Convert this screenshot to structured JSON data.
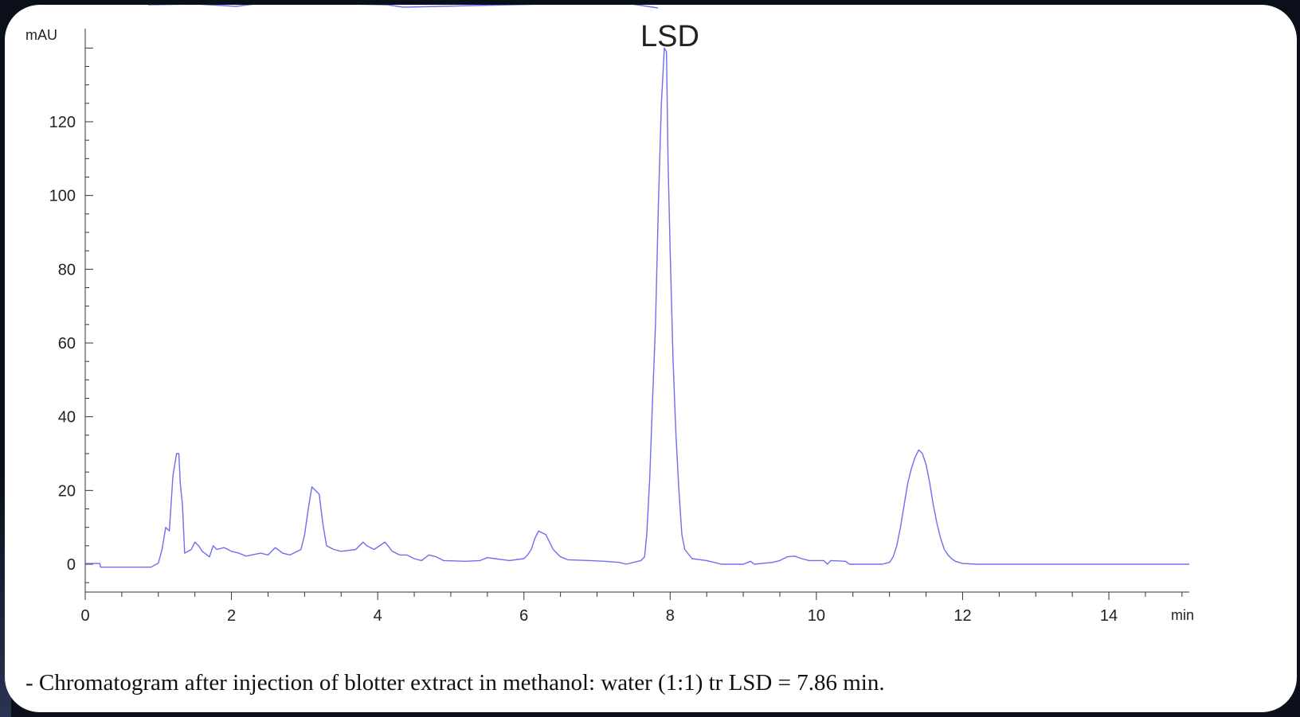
{
  "chart_data": {
    "type": "line",
    "title": "LSD",
    "ylabel": "mAU",
    "xlabel": "min",
    "xlim": [
      0,
      15.1
    ],
    "ylim": [
      -7,
      145
    ],
    "x_ticks": [
      "0",
      "2",
      "4",
      "6",
      "8",
      "10",
      "12",
      "14"
    ],
    "y_ticks": [
      "0",
      "20",
      "40",
      "60",
      "80",
      "100",
      "120"
    ],
    "series": [
      {
        "color": "#6e6ef0",
        "points": [
          [
            0.0,
            0.2
          ],
          [
            0.2,
            0.2
          ],
          [
            0.21,
            -0.8
          ],
          [
            0.9,
            -0.8
          ],
          [
            1.0,
            0.3
          ],
          [
            1.05,
            4
          ],
          [
            1.1,
            10
          ],
          [
            1.15,
            9
          ],
          [
            1.2,
            24
          ],
          [
            1.25,
            30
          ],
          [
            1.28,
            30
          ],
          [
            1.3,
            22
          ],
          [
            1.33,
            16
          ],
          [
            1.36,
            3
          ],
          [
            1.45,
            4
          ],
          [
            1.5,
            6
          ],
          [
            1.55,
            5
          ],
          [
            1.6,
            3.5
          ],
          [
            1.7,
            2
          ],
          [
            1.75,
            5
          ],
          [
            1.8,
            4
          ],
          [
            1.9,
            4.5
          ],
          [
            2.0,
            3.5
          ],
          [
            2.1,
            3
          ],
          [
            2.2,
            2.2
          ],
          [
            2.4,
            3
          ],
          [
            2.5,
            2.5
          ],
          [
            2.6,
            4.5
          ],
          [
            2.7,
            3
          ],
          [
            2.8,
            2.5
          ],
          [
            2.95,
            4
          ],
          [
            3.0,
            8
          ],
          [
            3.05,
            15
          ],
          [
            3.1,
            21
          ],
          [
            3.2,
            19
          ],
          [
            3.25,
            11
          ],
          [
            3.3,
            5
          ],
          [
            3.4,
            4
          ],
          [
            3.5,
            3.5
          ],
          [
            3.7,
            4
          ],
          [
            3.8,
            6
          ],
          [
            3.85,
            5
          ],
          [
            3.95,
            4
          ],
          [
            4.1,
            6
          ],
          [
            4.2,
            3.5
          ],
          [
            4.3,
            2.5
          ],
          [
            4.4,
            2.5
          ],
          [
            4.5,
            1.5
          ],
          [
            4.6,
            1
          ],
          [
            4.7,
            2.5
          ],
          [
            4.8,
            2
          ],
          [
            4.9,
            1
          ],
          [
            5.2,
            0.8
          ],
          [
            5.4,
            1
          ],
          [
            5.5,
            1.8
          ],
          [
            5.6,
            1.5
          ],
          [
            5.8,
            1
          ],
          [
            6.0,
            1.5
          ],
          [
            6.05,
            2.5
          ],
          [
            6.1,
            4
          ],
          [
            6.15,
            7
          ],
          [
            6.2,
            9
          ],
          [
            6.3,
            8
          ],
          [
            6.35,
            6
          ],
          [
            6.4,
            4
          ],
          [
            6.5,
            2
          ],
          [
            6.6,
            1.2
          ],
          [
            6.9,
            1
          ],
          [
            7.1,
            0.8
          ],
          [
            7.3,
            0.5
          ],
          [
            7.4,
            0
          ],
          [
            7.5,
            0.5
          ],
          [
            7.6,
            1
          ],
          [
            7.65,
            2
          ],
          [
            7.68,
            8
          ],
          [
            7.72,
            23
          ],
          [
            7.76,
            45
          ],
          [
            7.8,
            65
          ],
          [
            7.84,
            98
          ],
          [
            7.88,
            125
          ],
          [
            7.92,
            140
          ],
          [
            7.95,
            139
          ],
          [
            7.97,
            110
          ],
          [
            8.0,
            85
          ],
          [
            8.04,
            55
          ],
          [
            8.08,
            35
          ],
          [
            8.12,
            20
          ],
          [
            8.16,
            8
          ],
          [
            8.2,
            4
          ],
          [
            8.3,
            1.5
          ],
          [
            8.5,
            1
          ],
          [
            8.7,
            0
          ],
          [
            9.0,
            0
          ],
          [
            9.1,
            0.8
          ],
          [
            9.15,
            0
          ],
          [
            9.4,
            0.5
          ],
          [
            9.5,
            1
          ],
          [
            9.6,
            2
          ],
          [
            9.7,
            2.2
          ],
          [
            9.8,
            1.5
          ],
          [
            9.9,
            1
          ],
          [
            10.1,
            1
          ],
          [
            10.15,
            0
          ],
          [
            10.2,
            1
          ],
          [
            10.4,
            0.8
          ],
          [
            10.45,
            0
          ],
          [
            10.9,
            0
          ],
          [
            11.0,
            0.5
          ],
          [
            11.05,
            2
          ],
          [
            11.1,
            5
          ],
          [
            11.15,
            10
          ],
          [
            11.2,
            16
          ],
          [
            11.25,
            22
          ],
          [
            11.3,
            26
          ],
          [
            11.35,
            29
          ],
          [
            11.4,
            31
          ],
          [
            11.45,
            30
          ],
          [
            11.5,
            27
          ],
          [
            11.55,
            22
          ],
          [
            11.6,
            16
          ],
          [
            11.65,
            11
          ],
          [
            11.7,
            7
          ],
          [
            11.75,
            4
          ],
          [
            11.8,
            2.5
          ],
          [
            11.85,
            1.5
          ],
          [
            11.9,
            0.8
          ],
          [
            12.0,
            0.2
          ],
          [
            12.2,
            0
          ],
          [
            15.1,
            0
          ]
        ]
      }
    ],
    "annotations": [
      {
        "text": "LSD",
        "x": 7.92
      }
    ]
  },
  "caption": "- Chromatogram after injection of blotter extract in methanol: water (1:1) tr LSD = 7.86 min."
}
